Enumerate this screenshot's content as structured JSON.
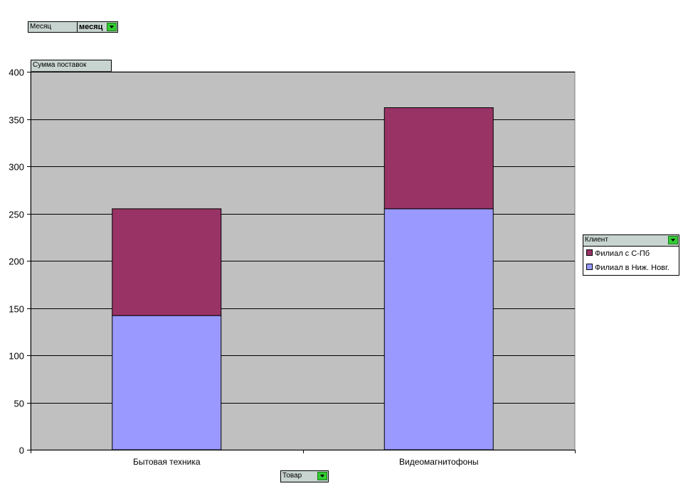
{
  "filters": {
    "page_field_label": "Месяц",
    "page_field_value": "месяц",
    "data_field_label": "Сумма поставок",
    "legend_field_label": "Клиент",
    "category_field_label": "Товар"
  },
  "chart_data": {
    "type": "bar",
    "stacked": true,
    "categories": [
      "Бытовая техника",
      "Видеомагнитофоны"
    ],
    "series": [
      {
        "name": "Филиал в Ниж. Новг.",
        "values": [
          142,
          255
        ],
        "color": "#9999ff"
      },
      {
        "name": "Филиал с С-Пб",
        "values": [
          113,
          107
        ],
        "color": "#993366"
      }
    ],
    "ylim": [
      0,
      400
    ],
    "yticks": [
      0,
      50,
      100,
      150,
      200,
      250,
      300,
      350,
      400
    ],
    "grid": true,
    "plot_background": "#c0c0c0",
    "legend_position": "right"
  }
}
